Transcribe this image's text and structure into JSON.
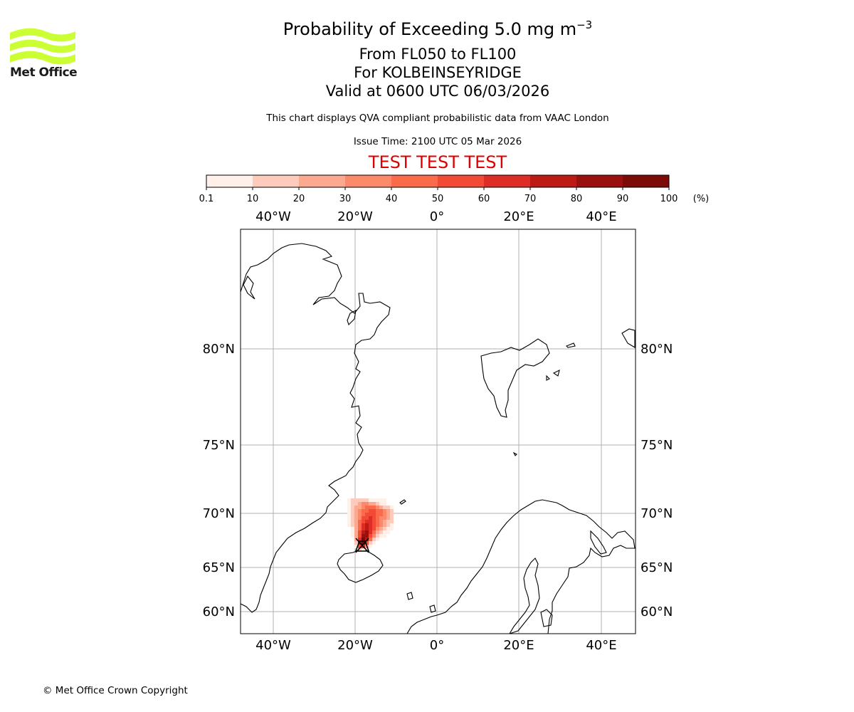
{
  "header": {
    "title_prefix": "Probability of Exceeding 5.0 mg m",
    "title_exponent": "−3",
    "levels": "From FL050 to FL100",
    "location": "For KOLBEINSEYRIDGE",
    "valid": "Valid at 0600 UTC 06/03/2026",
    "subtitle": "This chart displays QVA compliant probabilistic data from VAAC London",
    "issue_time": "Issue Time: 2100 UTC 05 Mar 2026",
    "test_banner": "TEST TEST TEST",
    "test_color": "#dd0000"
  },
  "logo": {
    "text": "Met Office",
    "icon": "met-office-wave-logo",
    "color": "#ccff33"
  },
  "colorbar": {
    "ticks": [
      "0.1",
      "10",
      "20",
      "30",
      "40",
      "50",
      "60",
      "70",
      "80",
      "90",
      "100"
    ],
    "unit": "(%)",
    "colors": [
      "#fff0ea",
      "#fdcabb",
      "#fca98f",
      "#fc8a6a",
      "#fb6a4a",
      "#f34a35",
      "#de2d26",
      "#bd1a16",
      "#9a100e",
      "#7c0b08",
      "#5e0a05"
    ]
  },
  "map": {
    "lon_labels_top": [
      "40°W",
      "20°W",
      "0°",
      "20°E",
      "40°E"
    ],
    "lon_labels_bottom": [
      "40°W",
      "20°W",
      "0°",
      "20°E",
      "40°E"
    ],
    "lat_labels_left": [
      "80°N",
      "75°N",
      "70°N",
      "65°N",
      "60°N"
    ],
    "lat_labels_right": [
      "80°N",
      "75°N",
      "70°N",
      "65°N",
      "60°N"
    ],
    "volcano_marker": "Kolbeinsey Ridge",
    "plume_probability_percent": [
      5,
      25,
      45,
      65,
      85
    ]
  },
  "footer": {
    "copyright": "© Met Office Crown Copyright"
  }
}
